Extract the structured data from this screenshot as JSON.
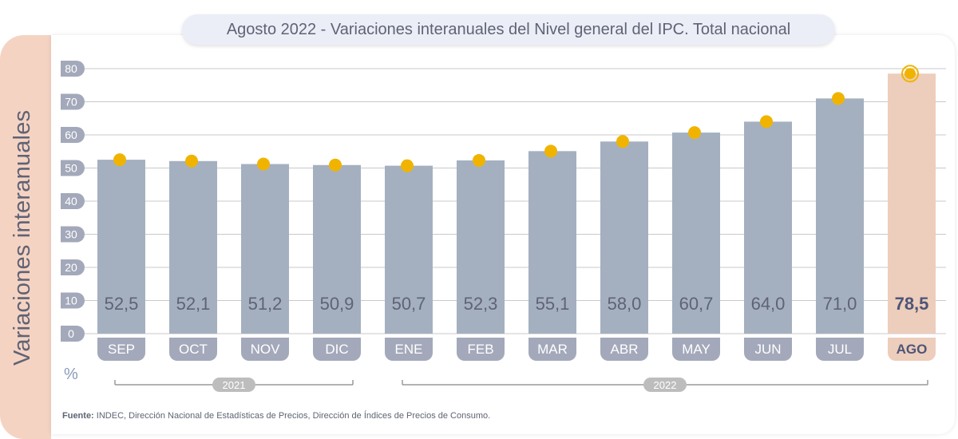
{
  "chart_data": {
    "type": "bar",
    "title": "Agosto 2022 - Variaciones interanuales del Nivel general del IPC. Total nacional",
    "ylabel": "Variaciones interanuales",
    "unit": "%",
    "ylim": [
      0,
      80
    ],
    "yticks": [
      0,
      10,
      20,
      30,
      40,
      50,
      60,
      70,
      80
    ],
    "grid": true,
    "categories": [
      "SEP",
      "OCT",
      "NOV",
      "DIC",
      "ENE",
      "FEB",
      "MAR",
      "ABR",
      "MAY",
      "JUN",
      "JUL",
      "AGO"
    ],
    "values": [
      52.5,
      52.1,
      51.2,
      50.9,
      50.7,
      52.3,
      55.1,
      58.0,
      60.7,
      64.0,
      71.0,
      78.5
    ],
    "value_labels": [
      "52,5",
      "52,1",
      "51,2",
      "50,9",
      "50,7",
      "52,3",
      "55,1",
      "58,0",
      "60,7",
      "64,0",
      "71,0",
      "78,5"
    ],
    "highlight_index": 11,
    "year_groups": [
      {
        "label": "2021",
        "start": 0,
        "end": 3
      },
      {
        "label": "2022",
        "start": 4,
        "end": 11
      }
    ],
    "colors": {
      "bar": "#a4b0c0",
      "bar_highlight": "#edcdbb",
      "marker": "#f0b400",
      "tick_badge": "#a3a9ba",
      "year_badge": "#bdbdbd",
      "grid": "#c9c9c9",
      "value_text": "#5f6374",
      "value_text_highlight": "#4d5577"
    }
  },
  "source": {
    "label": "Fuente:",
    "text": "INDEC, Dirección Nacional de Estadísticas de Precios, Dirección de Índices de Precios de Consumo."
  }
}
